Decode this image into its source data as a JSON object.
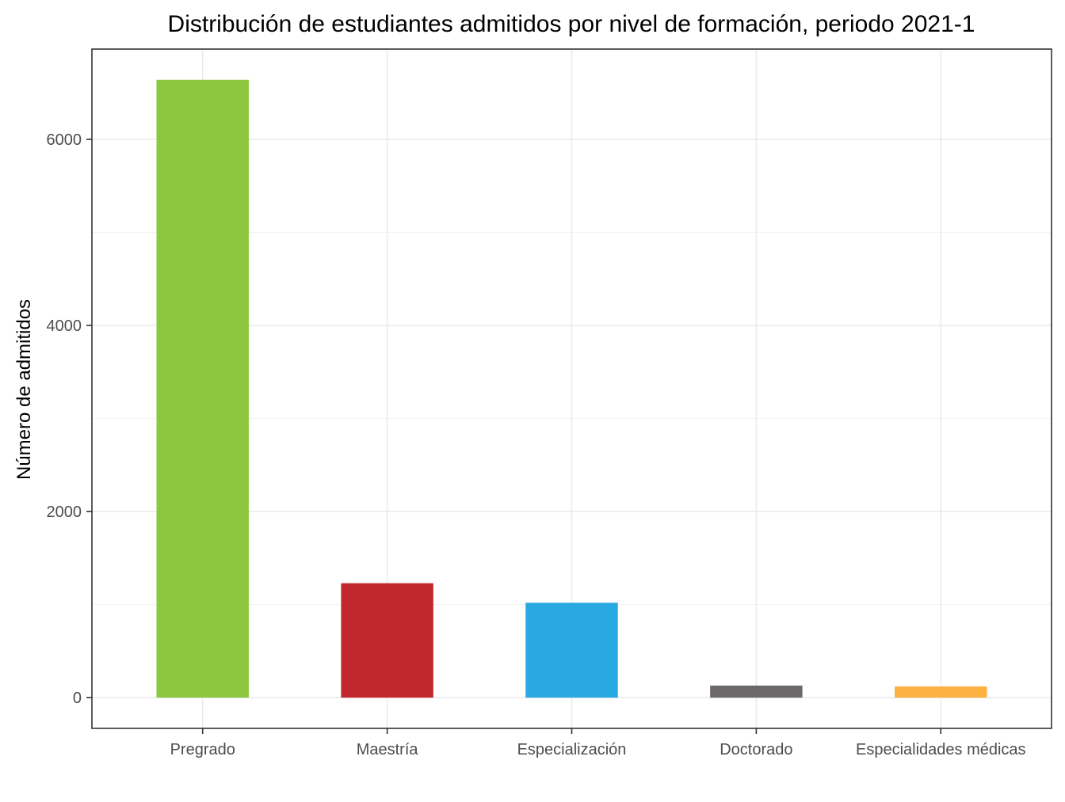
{
  "chart_data": {
    "type": "bar",
    "title": "Distribución de estudiantes admitidos por nivel de formación, periodo 2021-1",
    "xlabel": "",
    "ylabel": "Número de admitidos",
    "categories": [
      "Pregrado",
      "Maestría",
      "Especialización",
      "Doctorado",
      "Especialidades médicas"
    ],
    "values": [
      6640,
      1230,
      1020,
      130,
      120
    ],
    "colors": [
      "#8dc63f",
      "#c1272d",
      "#29a9e1",
      "#6d6869",
      "#fbb040"
    ],
    "ylim": [
      -330,
      6970
    ],
    "yticks": [
      0,
      2000,
      4000,
      6000
    ],
    "ytick_labels": [
      "0",
      "2000",
      "4000",
      "6000"
    ],
    "grid": true,
    "legend": "none"
  }
}
